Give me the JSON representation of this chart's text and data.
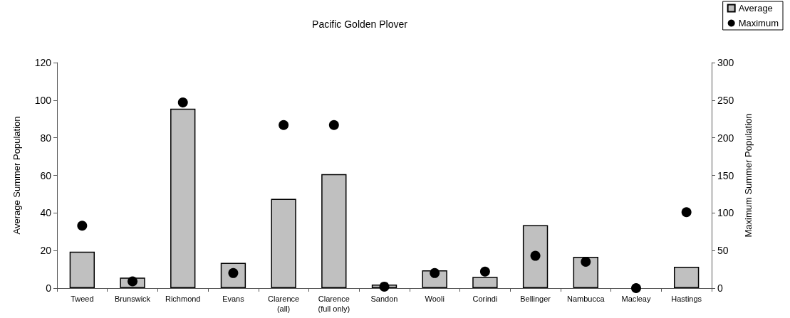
{
  "chart_data": {
    "type": "bar",
    "title": "Pacific Golden Plover",
    "ylabel": "Average Summer Population",
    "y2label": "Maximum Summer Population",
    "categories": [
      "Tweed",
      "Brunswick",
      "Richmond",
      "Evans",
      "Clarence\n(all)",
      "Clarence\n(full only)",
      "Sandon",
      "Wooli",
      "Corindi",
      "Bellinger",
      "Nambucca",
      "Macleay",
      "Hastings"
    ],
    "series": [
      {
        "name": "Average",
        "color": "#c0c0c0",
        "values": [
          19.4,
          5.6,
          95.5,
          13.4,
          47.5,
          60.7,
          1.9,
          9.5,
          6.0,
          33.5,
          16.7,
          0,
          11.4
        ]
      },
      {
        "name": "Maximum",
        "type": "scatter",
        "axis": "y2",
        "color": "#000000",
        "marker": "circle",
        "values": [
          83,
          9,
          247,
          20,
          217,
          217,
          2,
          20,
          22,
          43,
          35,
          0,
          101
        ]
      }
    ],
    "ylim": [
      0,
      120
    ],
    "yticks": [
      0,
      20,
      40,
      60,
      80,
      100,
      120
    ],
    "y2lim": [
      0,
      300
    ],
    "y2ticks": [
      0,
      50,
      100,
      150,
      200,
      250,
      300
    ],
    "legend": "top right",
    "grid": false
  }
}
